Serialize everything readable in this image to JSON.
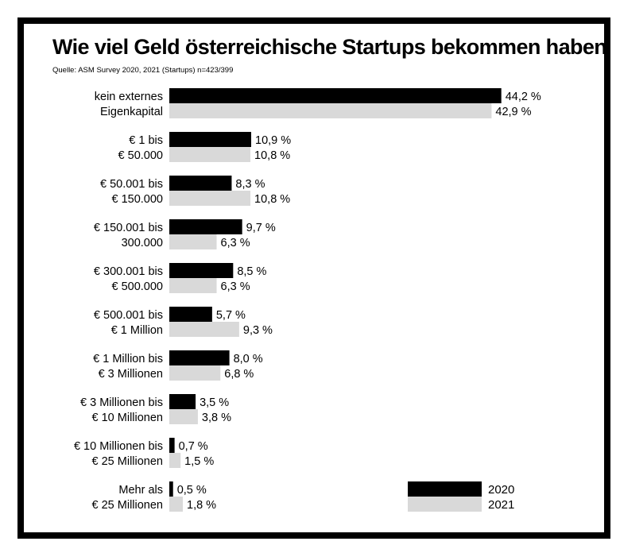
{
  "chart_data": {
    "type": "bar",
    "orientation": "horizontal",
    "title": "Wie viel Geld österreichische Startups bekommen haben",
    "subtitle": "Quelle: ASM Survey 2020, 2021 (Startups) n=423/399",
    "categories": [
      [
        "kein externes",
        "Eigenkapital"
      ],
      [
        "€ 1 bis",
        "€ 50.000"
      ],
      [
        "€ 50.001 bis",
        "€ 150.000"
      ],
      [
        "€ 150.001 bis",
        "300.000"
      ],
      [
        "€ 300.001 bis",
        "€ 500.000"
      ],
      [
        "€ 500.001 bis",
        "€ 1 Million"
      ],
      [
        "€ 1 Million bis",
        "€ 3 Millionen"
      ],
      [
        "€ 3 Millionen bis",
        "€ 10 Millionen"
      ],
      [
        "€ 10 Millionen bis",
        "€ 25 Millionen"
      ],
      [
        "Mehr als",
        "€ 25 Millionen"
      ]
    ],
    "series": [
      {
        "name": "2020",
        "color": "#000000",
        "values": [
          44.2,
          10.9,
          8.3,
          9.7,
          8.5,
          5.7,
          8.0,
          3.5,
          0.7,
          0.5
        ],
        "labels": [
          "44,2 %",
          "10,9 %",
          "8,3 %",
          "9,7 %",
          "8,5 %",
          "5,7 %",
          "8,0 %",
          "3,5 %",
          "0,7 %",
          "0,5 %"
        ]
      },
      {
        "name": "2021",
        "color": "#d9d9d9",
        "values": [
          42.9,
          10.8,
          10.8,
          6.3,
          6.3,
          9.3,
          6.8,
          3.8,
          1.5,
          1.8
        ],
        "labels": [
          "42,9 %",
          "10,8 %",
          "10,8 %",
          "6,3 %",
          "6,3 %",
          "9,3 %",
          "6,8 %",
          "3,8 %",
          "1,5 %",
          "1,8 %"
        ]
      }
    ],
    "legend_position": "bottom-right",
    "grid": false
  }
}
